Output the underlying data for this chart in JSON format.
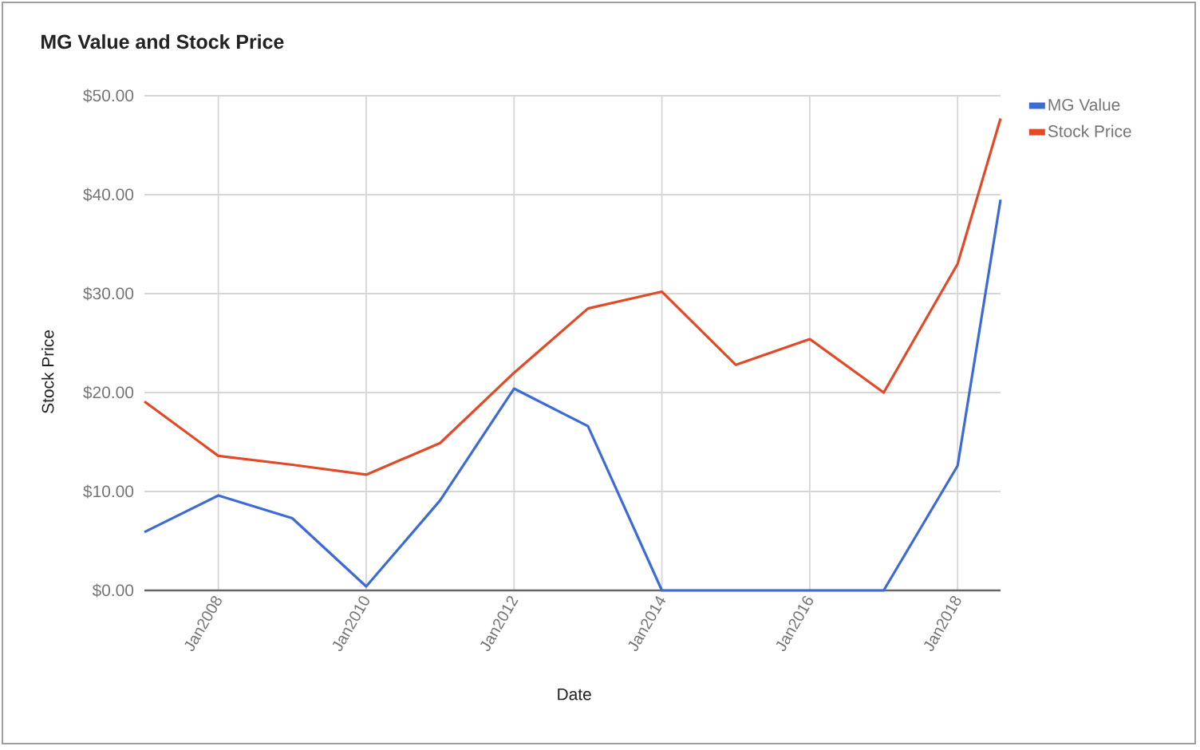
{
  "chart_data": {
    "type": "line",
    "title": "MG Value and Stock Price",
    "xlabel": "Date",
    "ylabel": "Stock Price",
    "x": [
      "2007-01",
      "2008-01",
      "2009-01",
      "2010-01",
      "2011-01",
      "2012-01",
      "2013-01",
      "2014-01",
      "2015-01",
      "2016-01",
      "2017-01",
      "2018-01",
      "2018-08"
    ],
    "series": [
      {
        "name": "MG Value",
        "color": "#3c6bd6",
        "values": [
          5.9,
          9.6,
          7.3,
          0.4,
          9.1,
          20.4,
          16.6,
          0,
          0,
          0,
          0,
          12.6,
          39.5
        ]
      },
      {
        "name": "Stock Price",
        "color": "#e24a27",
        "values": [
          19.1,
          13.6,
          12.7,
          11.7,
          14.9,
          22.0,
          28.5,
          30.2,
          22.8,
          25.4,
          20.0,
          33.0,
          47.7
        ]
      }
    ],
    "xlim": [
      "2007-01",
      "2018-08"
    ],
    "xticks": [
      {
        "value": "2008-01",
        "label": "Jan2008"
      },
      {
        "value": "2010-01",
        "label": "Jan2010"
      },
      {
        "value": "2012-01",
        "label": "Jan2012"
      },
      {
        "value": "2014-01",
        "label": "Jan2014"
      },
      {
        "value": "2016-01",
        "label": "Jan2016"
      },
      {
        "value": "2018-01",
        "label": "Jan2018"
      }
    ],
    "ylim": [
      0,
      50
    ],
    "yticks": [
      {
        "value": 0,
        "label": "$0.00"
      },
      {
        "value": 10,
        "label": "$10.00"
      },
      {
        "value": 20,
        "label": "$20.00"
      },
      {
        "value": 30,
        "label": "$30.00"
      },
      {
        "value": 40,
        "label": "$40.00"
      },
      {
        "value": 50,
        "label": "$50.00"
      }
    ],
    "grid": true,
    "legend": "top right"
  }
}
